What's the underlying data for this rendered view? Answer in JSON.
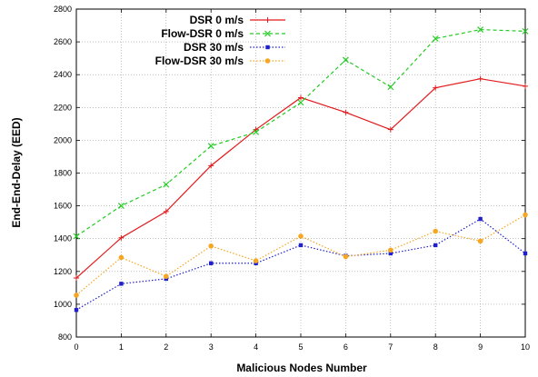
{
  "chart_data": {
    "type": "line",
    "xlabel": "Malicious Nodes Number",
    "ylabel": "End-End-Delay (EED)",
    "xlim": [
      0,
      10
    ],
    "ylim": [
      800,
      2800
    ],
    "x_ticks": [
      "0",
      "1",
      "2",
      "3",
      "4",
      "5",
      "6",
      "7",
      "8",
      "9",
      "10"
    ],
    "y_ticks": [
      "800",
      "1000",
      "1200",
      "1400",
      "1600",
      "1800",
      "2000",
      "2200",
      "2400",
      "2600",
      "2800"
    ],
    "grid": true,
    "legend_position": "top-left",
    "x": [
      0,
      1,
      2,
      3,
      4,
      5,
      6,
      7,
      8,
      9,
      10
    ],
    "series": [
      {
        "name": "DSR 0 m/s",
        "color": "#e31a1c",
        "marker": "plus",
        "dash": "solid",
        "values": [
          1160,
          1405,
          1565,
          1845,
          2065,
          2260,
          2170,
          2065,
          2320,
          2375,
          2330
        ]
      },
      {
        "name": "Flow-DSR 0 m/s",
        "color": "#22cc22",
        "marker": "cross",
        "dash": "dashed",
        "values": [
          1415,
          1600,
          1730,
          1965,
          2050,
          2230,
          2490,
          2325,
          2620,
          2675,
          2665
        ]
      },
      {
        "name": "DSR 30 m/s",
        "color": "#1f1fcc",
        "marker": "square",
        "dash": "dotted",
        "values": [
          965,
          1125,
          1155,
          1250,
          1250,
          1360,
          1295,
          1310,
          1360,
          1520,
          1310
        ]
      },
      {
        "name": "Flow-DSR 30 m/s",
        "color": "#f5a623",
        "marker": "circle",
        "dash": "dotted",
        "values": [
          1055,
          1285,
          1170,
          1355,
          1265,
          1415,
          1290,
          1330,
          1445,
          1385,
          1545
        ]
      }
    ]
  }
}
